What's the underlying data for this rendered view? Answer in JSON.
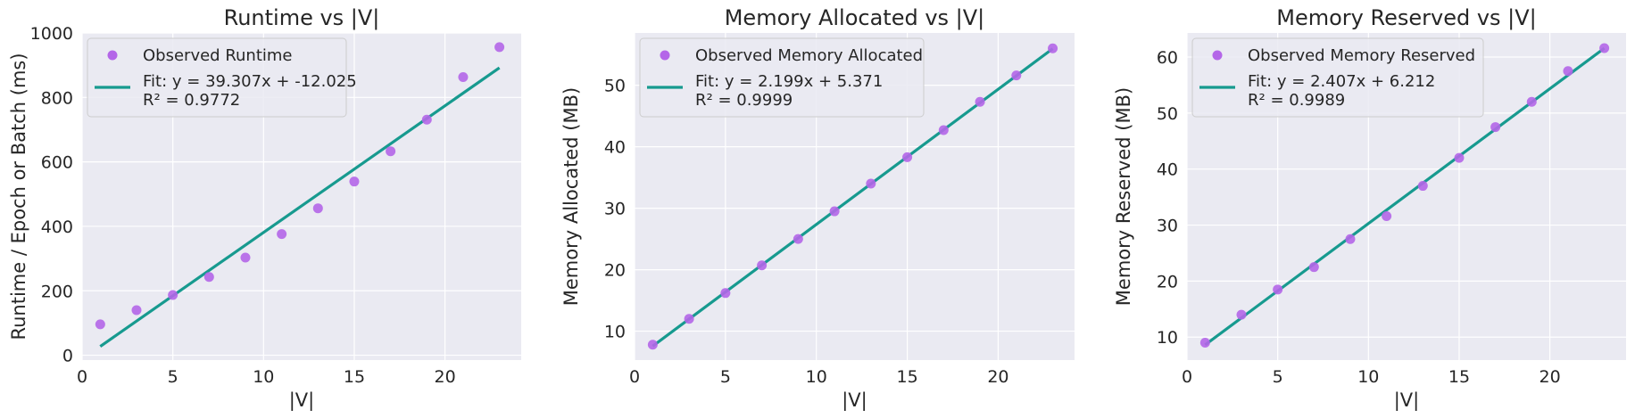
{
  "colors": {
    "panel_bg": "#EAEAF2",
    "grid": "#FFFFFF",
    "points": "#B466E8",
    "fit_line": "#179A8F",
    "text": "#262626"
  },
  "chart_data": [
    {
      "type": "scatter",
      "title": "Runtime vs |V|",
      "xlabel": "|V|",
      "ylabel": "Runtime / Epoch or Batch (ms)",
      "xlim": [
        0,
        24.2
      ],
      "ylim": [
        -15,
        1000
      ],
      "xticks": [
        0,
        5,
        10,
        15,
        20
      ],
      "yticks": [
        0,
        200,
        400,
        600,
        800,
        1000
      ],
      "grid": true,
      "legend_position": "top-left",
      "series": [
        {
          "name": "Observed Runtime",
          "kind": "scatter",
          "x": [
            1,
            3,
            5,
            7,
            9,
            11,
            13,
            15,
            17,
            19,
            21,
            23
          ],
          "y": [
            96,
            140,
            187,
            243,
            303,
            376,
            456,
            539,
            633,
            731,
            863,
            956
          ]
        },
        {
          "name": "Fit: y = 39.307x + -12.025",
          "name_line2": "R² = 0.9772",
          "kind": "line",
          "slope": 39.307,
          "intercept": -12.025,
          "x_range": [
            1,
            23
          ]
        }
      ]
    },
    {
      "type": "scatter",
      "title": "Memory Allocated vs |V|",
      "xlabel": "|V|",
      "ylabel": "Memory Allocated (MB)",
      "xlim": [
        0,
        24.2
      ],
      "ylim": [
        5.3,
        58.5
      ],
      "xticks": [
        0,
        5,
        10,
        15,
        20
      ],
      "yticks": [
        10,
        20,
        30,
        40,
        50
      ],
      "grid": true,
      "legend_position": "top-left",
      "series": [
        {
          "name": "Observed Memory Allocated",
          "kind": "scatter",
          "x": [
            1,
            3,
            5,
            7,
            9,
            11,
            13,
            15,
            17,
            19,
            21,
            23
          ],
          "y": [
            7.8,
            12.0,
            16.2,
            20.7,
            25.0,
            29.5,
            34.0,
            38.3,
            42.7,
            47.3,
            51.6,
            56.0
          ]
        },
        {
          "name": "Fit: y = 2.199x + 5.371",
          "name_line2": "R² = 0.9999",
          "kind": "line",
          "slope": 2.199,
          "intercept": 5.371,
          "x_range": [
            1,
            23
          ]
        }
      ]
    },
    {
      "type": "scatter",
      "title": "Memory Reserved vs |V|",
      "xlabel": "|V|",
      "ylabel": "Memory Reserved (MB)",
      "xlim": [
        0,
        24.2
      ],
      "ylim": [
        5.9,
        64.3
      ],
      "xticks": [
        0,
        5,
        10,
        15,
        20
      ],
      "yticks": [
        10,
        20,
        30,
        40,
        50,
        60
      ],
      "grid": true,
      "legend_position": "top-left",
      "series": [
        {
          "name": "Observed Memory Reserved",
          "kind": "scatter",
          "x": [
            1,
            3,
            5,
            7,
            9,
            11,
            13,
            15,
            17,
            19,
            21,
            23
          ],
          "y": [
            9.0,
            14.0,
            18.5,
            22.5,
            27.5,
            31.6,
            37.0,
            42.0,
            47.5,
            52.0,
            57.5,
            61.6
          ]
        },
        {
          "name": "Fit: y = 2.407x + 6.212",
          "name_line2": "R² = 0.9989",
          "kind": "line",
          "slope": 2.407,
          "intercept": 6.212,
          "x_range": [
            1,
            23
          ]
        }
      ]
    }
  ]
}
